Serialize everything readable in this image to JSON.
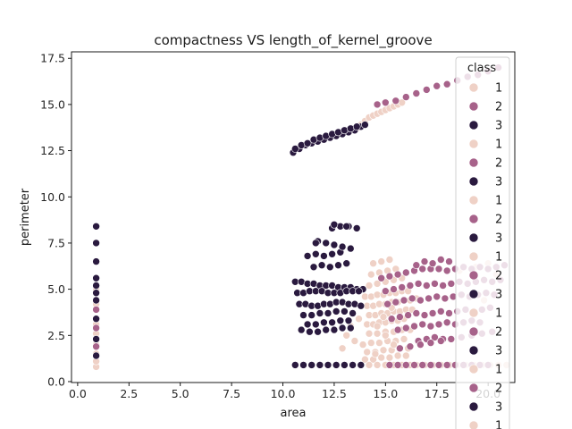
{
  "chart_data": {
    "type": "scatter",
    "title": "compactness VS length_of_kernel_groove",
    "xlabel": "area",
    "ylabel": "perimeter",
    "xlim": [
      -0.3,
      21.3
    ],
    "ylim": [
      -0.05,
      17.85
    ],
    "x_ticks": [
      0.0,
      2.5,
      5.0,
      7.5,
      10.0,
      12.5,
      15.0,
      17.5,
      20.0
    ],
    "x_tick_labels": [
      "0.0",
      "2.5",
      "5.0",
      "7.5",
      "10.0",
      "12.5",
      "15.0",
      "17.5",
      "20.0"
    ],
    "y_ticks": [
      0.0,
      2.5,
      5.0,
      7.5,
      10.0,
      12.5,
      15.0,
      17.5
    ],
    "y_tick_labels": [
      "0.0",
      "2.5",
      "5.0",
      "7.5",
      "10.0",
      "12.5",
      "15.0",
      "17.5"
    ],
    "grid": false,
    "legend": {
      "title": "class",
      "placement": "top-right",
      "entries": [
        "1",
        "2",
        "3",
        "1",
        "2",
        "3",
        "1",
        "2",
        "3",
        "1",
        "2",
        "3",
        "1",
        "2",
        "3",
        "1",
        "2",
        "3",
        "1"
      ]
    },
    "class_colors": {
      "1": "#efd1c6",
      "2": "#a7628a",
      "3": "#2a1a3f"
    },
    "series": [
      {
        "name": "1",
        "x": [
          14.0,
          14.3,
          14.6,
          14.9,
          15.2,
          15.5,
          15.8,
          16.1,
          14.1,
          14.4,
          14.7,
          15.0,
          15.3,
          15.6,
          15.9,
          16.2,
          16.5,
          14.2,
          14.5,
          14.8,
          15.1,
          15.4,
          15.7,
          16.0,
          16.3,
          14.1,
          14.4,
          14.7,
          15.0,
          15.3,
          15.6,
          15.9,
          14.2,
          14.6,
          15.0,
          15.4,
          15.8,
          16.2,
          14.3,
          14.7,
          15.1,
          15.5,
          15.9,
          14.1,
          14.5,
          14.9,
          15.3,
          15.7,
          16.1,
          14.0,
          14.4,
          14.8,
          15.2,
          15.6,
          16.0,
          14.2,
          14.6,
          15.0,
          15.4,
          15.8,
          14.3,
          14.7,
          15.1,
          15.5,
          14.4,
          14.8,
          15.2,
          14.6,
          15.0,
          15.4,
          14.5,
          14.9,
          15.3,
          13.1,
          13.5,
          13.9,
          12.9,
          13.3,
          13.7,
          14.1,
          16.5,
          16.9,
          17.3,
          17.7,
          18.1,
          18.5,
          18.9,
          19.3,
          19.7,
          20.1,
          20.5,
          20.9,
          14.2,
          14.6,
          15.0,
          15.4,
          15.8,
          16.2,
          18.6,
          19.4,
          20.0,
          20.4,
          19.8,
          13.6,
          13.8,
          14.0,
          14.2,
          14.4,
          14.6,
          14.8,
          15.0,
          15.2,
          15.4,
          15.6,
          15.8,
          0.9,
          0.9,
          0.9,
          0.9,
          0.9,
          0.9,
          0.9,
          0.9
        ],
        "y": [
          4.6,
          4.6,
          4.7,
          4.7,
          4.8,
          4.8,
          4.9,
          4.9,
          4.1,
          4.1,
          4.2,
          4.2,
          4.3,
          4.3,
          4.4,
          4.4,
          4.5,
          3.6,
          3.6,
          3.7,
          3.7,
          3.8,
          3.8,
          3.9,
          3.9,
          3.1,
          3.1,
          3.2,
          3.2,
          3.3,
          3.3,
          3.4,
          2.6,
          2.6,
          2.7,
          2.7,
          2.8,
          2.8,
          2.1,
          2.1,
          2.2,
          2.2,
          2.3,
          1.6,
          1.6,
          1.7,
          1.7,
          1.8,
          1.8,
          1.2,
          1.2,
          1.3,
          1.3,
          1.4,
          1.4,
          5.2,
          5.3,
          5.4,
          5.5,
          5.6,
          5.8,
          5.9,
          6.0,
          6.1,
          6.4,
          6.5,
          6.6,
          3.0,
          2.5,
          2.0,
          1.5,
          3.5,
          4.0,
          2.5,
          2.2,
          2.0,
          1.8,
          3.0,
          3.4,
          1.6,
          0.9,
          0.9,
          0.9,
          0.9,
          0.9,
          0.9,
          0.9,
          0.9,
          0.9,
          0.9,
          0.9,
          0.9,
          0.9,
          0.9,
          0.9,
          0.9,
          0.9,
          0.9,
          6.0,
          6.2,
          6.4,
          5.8,
          4.4,
          13.7,
          13.9,
          14.1,
          14.3,
          14.4,
          14.5,
          14.6,
          14.7,
          14.8,
          14.9,
          15.0,
          15.1,
          0.8,
          1.1,
          1.5,
          2.0,
          2.6,
          3.1,
          4.2,
          5.0
        ]
      },
      {
        "name": "2",
        "x": [
          14.8,
          15.2,
          15.6,
          16.0,
          16.4,
          16.8,
          17.2,
          17.6,
          18.0,
          18.4,
          18.8,
          19.2,
          19.6,
          20.0,
          20.4,
          20.8,
          15.0,
          15.4,
          15.8,
          16.2,
          16.6,
          17.0,
          17.4,
          17.8,
          18.2,
          18.6,
          19.0,
          19.4,
          19.8,
          20.2,
          20.6,
          15.1,
          15.5,
          15.9,
          16.3,
          16.7,
          17.1,
          17.5,
          17.9,
          18.3,
          18.7,
          19.1,
          19.5,
          19.9,
          20.3,
          15.3,
          15.7,
          16.1,
          16.5,
          16.9,
          17.3,
          17.7,
          18.1,
          18.5,
          18.9,
          19.3,
          19.7,
          20.1,
          15.6,
          16.0,
          16.4,
          16.8,
          17.2,
          17.6,
          18.0,
          18.4,
          18.8,
          19.2,
          19.6,
          16.5,
          16.9,
          17.3,
          17.7,
          18.1,
          16.6,
          17.0,
          17.4,
          17.8,
          15.7,
          16.2,
          16.7,
          17.2,
          17.7,
          18.2,
          18.7,
          19.2,
          19.7,
          20.2,
          14.6,
          15.0,
          15.5,
          16.0,
          16.5,
          17.0,
          17.5,
          18.0,
          18.5,
          19.0,
          19.5,
          20.0,
          20.5,
          15.2,
          15.6,
          16.0,
          16.4,
          16.8,
          17.2,
          17.6,
          18.0,
          18.4,
          18.8,
          19.2,
          19.6,
          20.0,
          0.9,
          0.9,
          0.9,
          0.9
        ],
        "y": [
          5.6,
          5.7,
          5.8,
          5.9,
          6.0,
          6.1,
          6.1,
          6.1,
          6.0,
          6.1,
          6.2,
          6.1,
          6.2,
          6.1,
          6.2,
          6.3,
          4.9,
          5.0,
          5.1,
          5.2,
          5.3,
          5.2,
          5.3,
          5.2,
          5.3,
          5.4,
          5.3,
          5.4,
          5.5,
          5.4,
          5.5,
          4.2,
          4.3,
          4.4,
          4.5,
          4.4,
          4.5,
          4.6,
          4.5,
          4.6,
          4.7,
          4.6,
          4.7,
          4.8,
          4.7,
          3.4,
          3.5,
          3.6,
          3.7,
          3.6,
          3.7,
          3.8,
          3.7,
          3.8,
          3.9,
          3.8,
          3.9,
          4.0,
          2.8,
          2.9,
          3.0,
          3.1,
          3.0,
          3.1,
          3.2,
          3.1,
          3.2,
          3.3,
          3.2,
          6.3,
          6.5,
          6.4,
          6.6,
          6.5,
          2.2,
          2.3,
          2.4,
          2.3,
          1.8,
          1.9,
          2.0,
          2.1,
          2.2,
          2.3,
          2.4,
          2.5,
          2.6,
          2.7,
          15.0,
          15.1,
          15.2,
          15.4,
          15.6,
          15.8,
          16.0,
          16.1,
          16.3,
          16.5,
          16.6,
          16.8,
          17.0,
          0.9,
          0.9,
          0.9,
          0.9,
          0.9,
          0.9,
          0.9,
          0.9,
          0.9,
          0.9,
          0.9,
          0.9,
          0.9,
          1.9,
          2.9,
          3.9,
          5.6
        ]
      },
      {
        "name": "3",
        "x": [
          10.6,
          10.9,
          11.2,
          11.5,
          11.8,
          12.1,
          12.4,
          12.7,
          13.0,
          13.3,
          13.6,
          13.9,
          10.7,
          11.0,
          11.3,
          11.6,
          11.9,
          12.2,
          12.5,
          12.8,
          13.1,
          13.4,
          13.7,
          10.8,
          11.1,
          11.4,
          11.7,
          12.0,
          12.3,
          12.6,
          12.9,
          13.2,
          13.5,
          13.8,
          11.0,
          11.4,
          11.8,
          12.2,
          12.6,
          13.0,
          13.4,
          11.2,
          11.6,
          12.0,
          12.4,
          12.8,
          13.2,
          10.9,
          11.3,
          11.7,
          12.1,
          12.5,
          12.9,
          13.3,
          11.5,
          11.9,
          12.3,
          12.7,
          13.1,
          11.2,
          11.6,
          12.0,
          12.4,
          12.8,
          11.7,
          12.1,
          12.5,
          12.9,
          13.3,
          11.6,
          12.4,
          12.8,
          13.2,
          13.6,
          12.5,
          13.1,
          10.6,
          11.0,
          11.4,
          11.8,
          12.2,
          12.6,
          13.0,
          13.4,
          13.8,
          10.5,
          10.8,
          11.1,
          11.4,
          11.7,
          12.0,
          12.3,
          12.6,
          12.9,
          13.2,
          13.5,
          13.8,
          14.0,
          10.6,
          10.9,
          11.2,
          11.5,
          11.8,
          12.1,
          12.4,
          12.7,
          13.0,
          13.3,
          13.6,
          0.9,
          0.9,
          0.9,
          0.9,
          0.9,
          0.9,
          0.9,
          0.9,
          0.9,
          0.9
        ],
        "y": [
          5.4,
          5.4,
          5.3,
          5.3,
          5.2,
          5.2,
          5.2,
          5.1,
          5.1,
          5.1,
          5.0,
          5.0,
          4.8,
          4.8,
          4.9,
          4.9,
          4.9,
          4.8,
          4.8,
          4.8,
          4.9,
          4.9,
          4.9,
          4.2,
          4.2,
          4.1,
          4.1,
          4.2,
          4.2,
          4.3,
          4.3,
          4.2,
          4.2,
          4.1,
          3.6,
          3.6,
          3.7,
          3.7,
          3.8,
          3.8,
          3.7,
          3.1,
          3.1,
          3.2,
          3.2,
          3.3,
          3.3,
          2.8,
          2.7,
          2.7,
          2.8,
          2.8,
          2.9,
          2.9,
          6.2,
          6.3,
          6.2,
          6.3,
          6.4,
          6.8,
          6.9,
          6.8,
          6.9,
          7.0,
          7.6,
          7.5,
          7.4,
          7.3,
          7.2,
          7.5,
          8.3,
          8.4,
          8.4,
          8.3,
          8.5,
          8.4,
          0.9,
          0.9,
          0.9,
          0.9,
          0.9,
          0.9,
          0.9,
          0.9,
          0.9,
          12.4,
          12.6,
          12.8,
          12.9,
          13.0,
          13.1,
          13.2,
          13.3,
          13.4,
          13.5,
          13.6,
          13.8,
          13.9,
          12.6,
          12.8,
          12.9,
          13.1,
          13.2,
          13.3,
          13.4,
          13.5,
          13.6,
          13.7,
          13.8,
          1.4,
          2.3,
          3.4,
          4.4,
          4.8,
          5.2,
          5.6,
          6.5,
          7.5,
          8.4
        ]
      }
    ]
  }
}
